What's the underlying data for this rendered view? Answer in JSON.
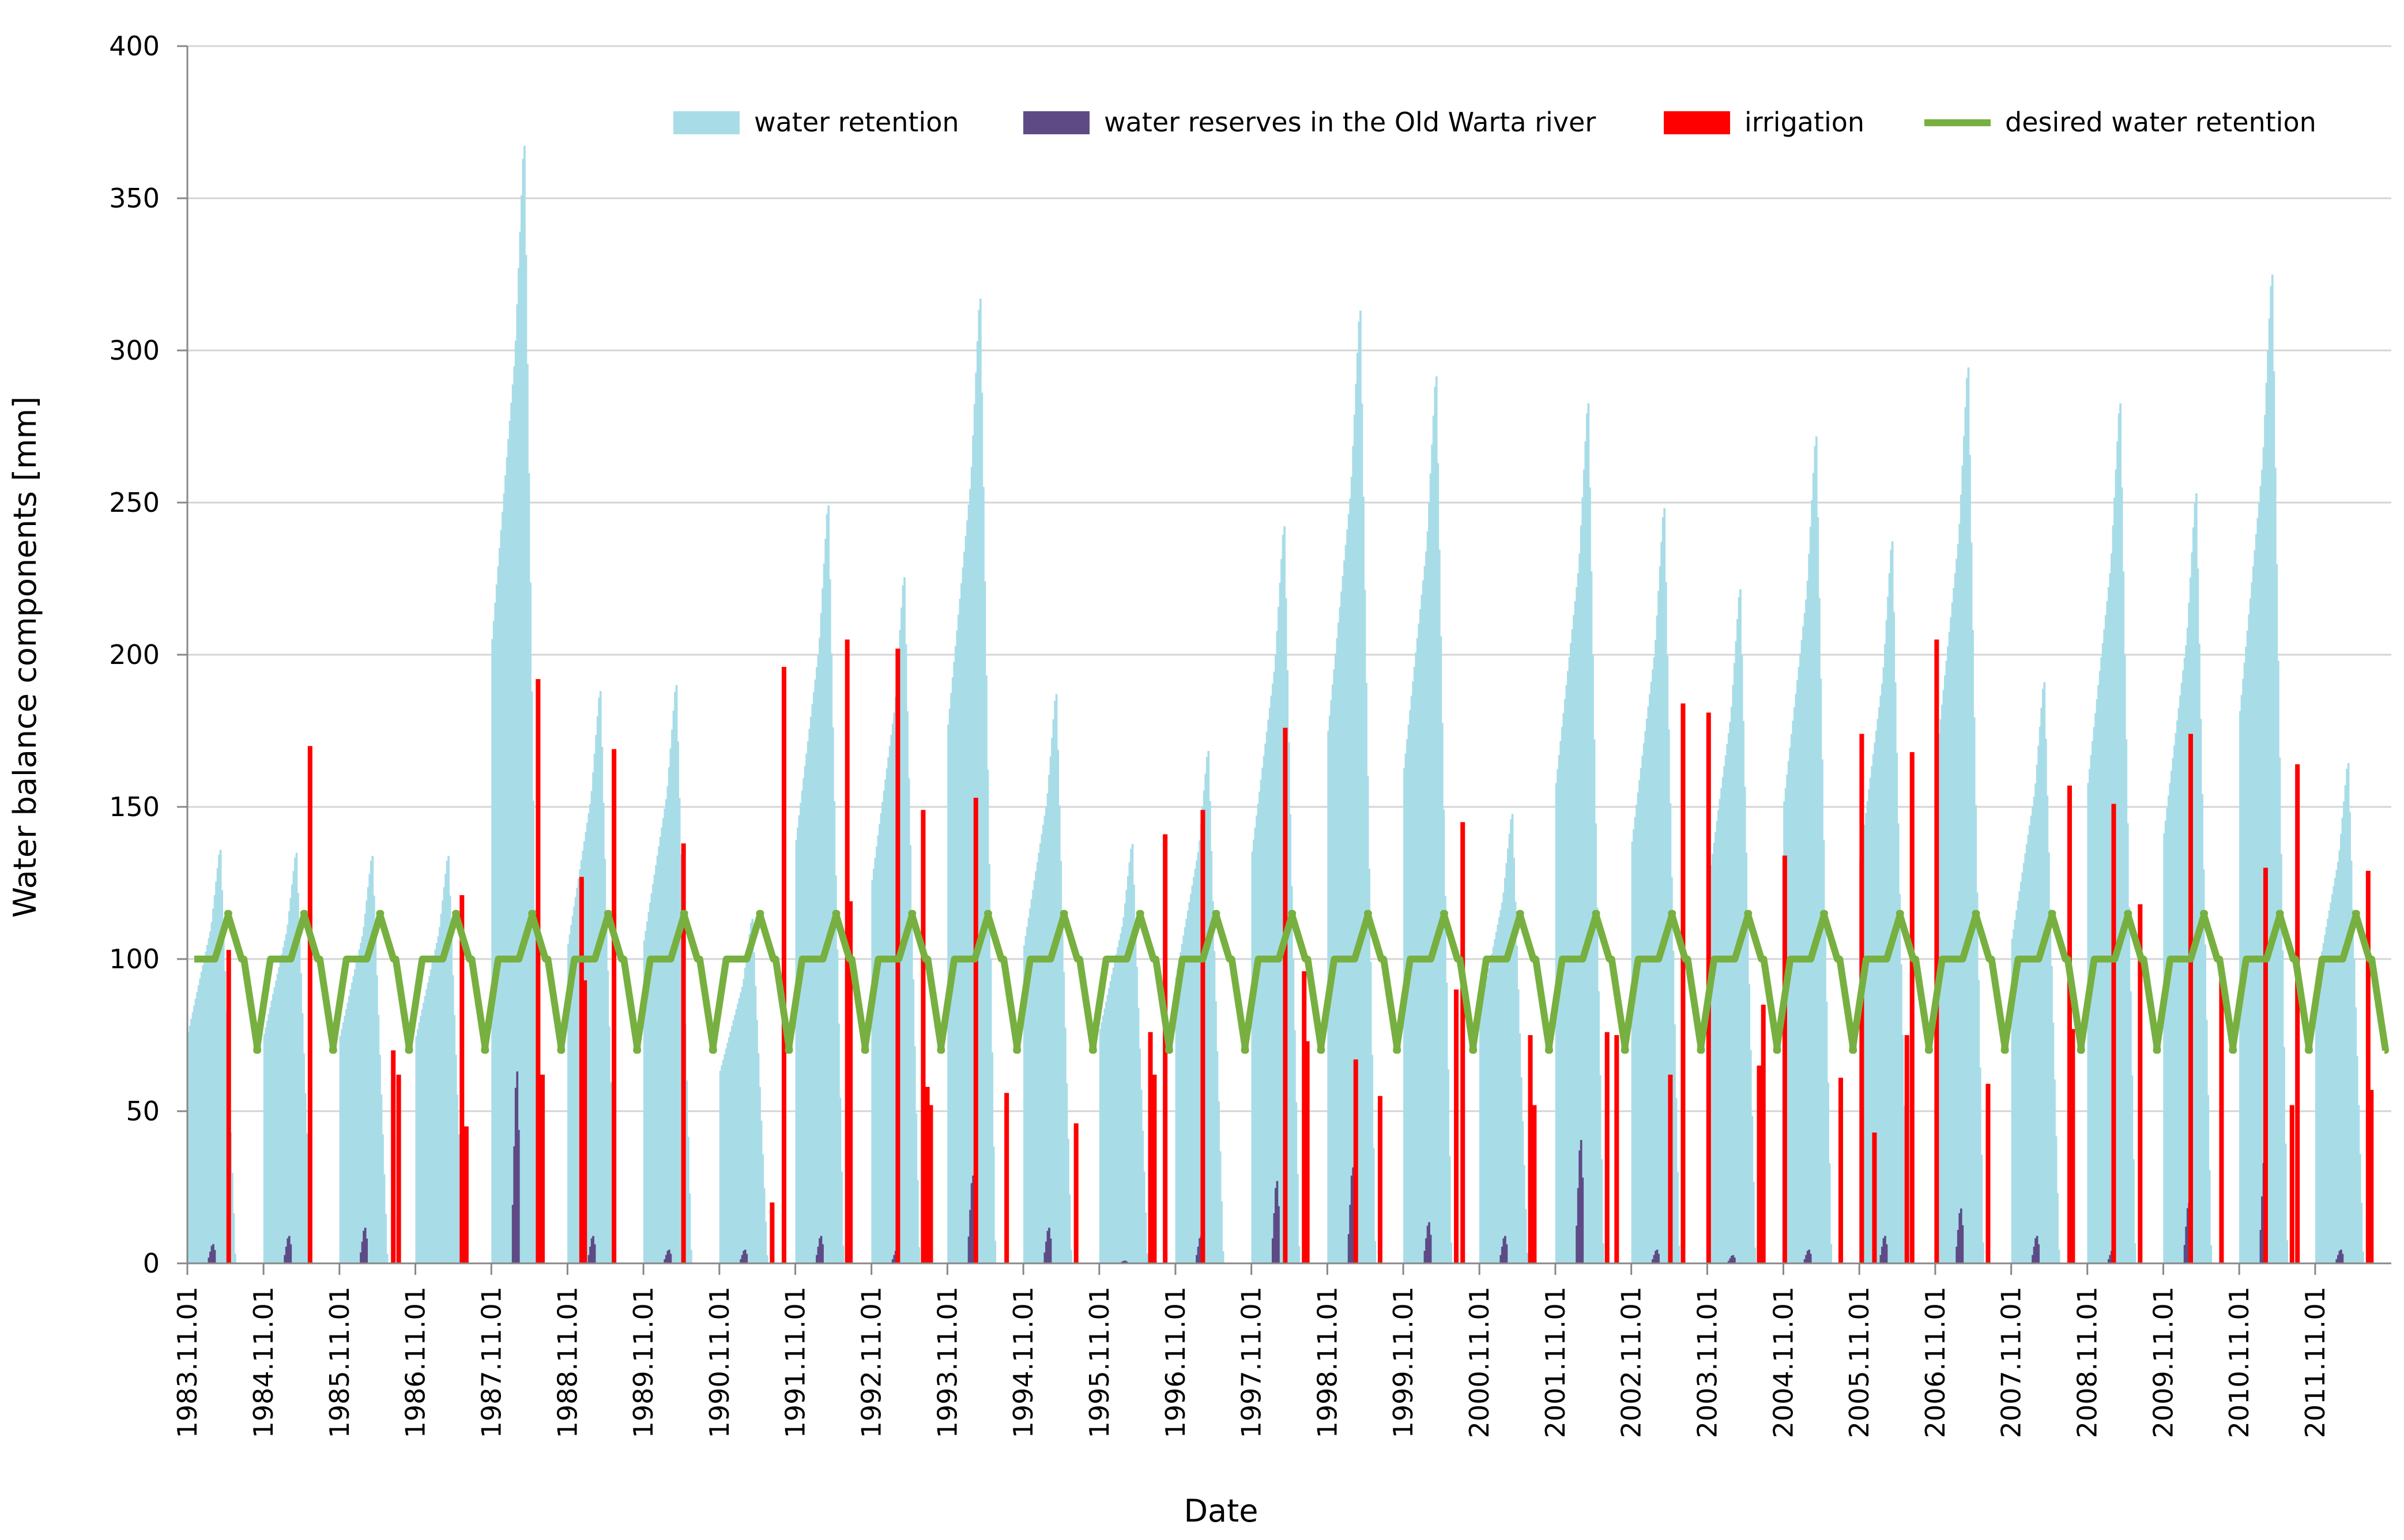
{
  "chart_data": {
    "type": "bar",
    "title": "",
    "xlabel": "Date",
    "ylabel": "Water balance components    [mm]",
    "ylim": [
      0,
      400
    ],
    "yticks": [
      "0",
      "50",
      "100",
      "150",
      "200",
      "250",
      "300",
      "350",
      "400"
    ],
    "x_start": "1983.11.01",
    "x_end": "2012.11.01",
    "xticks": [
      "1983.11.01",
      "1984.11.01",
      "1985.11.01",
      "1986.11.01",
      "1987.11.01",
      "1988.11.01",
      "1989.11.01",
      "1990.11.01",
      "1991.11.01",
      "1992.11.01",
      "1993.11.01",
      "1994.11.01",
      "1995.11.01",
      "1996.11.01",
      "1997.11.01",
      "1998.11.01",
      "1999.11.01",
      "2000.11.01",
      "2001.11.01",
      "2002.11.01",
      "2003.11.01",
      "2004.11.01",
      "2005.11.01",
      "2006.11.01",
      "2007.11.01",
      "2008.11.01",
      "2009.11.01",
      "2010.11.01",
      "2011.11.01"
    ],
    "grid": true,
    "legend_position": "top-right",
    "series": [
      {
        "name": "water retention",
        "type": "bar",
        "color": "#a8dde8",
        "peaks": [
          138,
          137,
          136,
          136,
          373,
          191,
          193,
          115,
          253,
          229,
          322,
          190,
          140,
          171,
          246,
          318,
          296,
          150,
          287,
          252,
          225,
          276,
          241,
          299,
          194,
          287,
          257,
          330,
          167
        ]
      },
      {
        "name": "water reserves in the Old Warta river",
        "type": "bar",
        "color": "#5e4b86",
        "peaks": [
          7,
          10,
          13,
          0,
          70,
          10,
          5,
          5,
          10,
          5,
          32,
          13,
          1,
          10,
          30,
          35,
          15,
          10,
          45,
          5,
          3,
          5,
          10,
          20,
          10,
          5,
          22,
          40,
          5
        ]
      },
      {
        "name": "irrigation",
        "type": "bar",
        "color": "#ff0000",
        "events": [
          {
            "date": "1984.05.15",
            "value": 103
          },
          {
            "date": "1985.06.10",
            "value": 170
          },
          {
            "date": "1986.07.15",
            "value": 70
          },
          {
            "date": "1986.08.10",
            "value": 62
          },
          {
            "date": "1987.06.10",
            "value": 121
          },
          {
            "date": "1987.07.01",
            "value": 45
          },
          {
            "date": "1988.06.10",
            "value": 192
          },
          {
            "date": "1988.07.01",
            "value": 62
          },
          {
            "date": "1989.01.05",
            "value": 127
          },
          {
            "date": "1989.01.20",
            "value": 93
          },
          {
            "date": "1989.06.10",
            "value": 169
          },
          {
            "date": "1990.05.10",
            "value": 138
          },
          {
            "date": "1991.07.10",
            "value": 20
          },
          {
            "date": "1991.09.05",
            "value": 196
          },
          {
            "date": "1992.07.05",
            "value": 205
          },
          {
            "date": "1992.07.20",
            "value": 119
          },
          {
            "date": "1993.03.05",
            "value": 202
          },
          {
            "date": "1993.07.05",
            "value": 149
          },
          {
            "date": "1993.07.25",
            "value": 58
          },
          {
            "date": "1993.08.10",
            "value": 52
          },
          {
            "date": "1994.03.15",
            "value": 153
          },
          {
            "date": "1994.08.10",
            "value": 56
          },
          {
            "date": "1995.07.10",
            "value": 46
          },
          {
            "date": "1996.07.01",
            "value": 76
          },
          {
            "date": "1996.07.20",
            "value": 62
          },
          {
            "date": "1996.09.10",
            "value": 141
          },
          {
            "date": "1997.03.10",
            "value": 149
          },
          {
            "date": "1998.04.10",
            "value": 176
          },
          {
            "date": "1998.07.10",
            "value": 96
          },
          {
            "date": "1998.07.25",
            "value": 73
          },
          {
            "date": "1999.03.15",
            "value": 67
          },
          {
            "date": "1999.07.10",
            "value": 55
          },
          {
            "date": "2000.07.10",
            "value": 90
          },
          {
            "date": "2000.08.10",
            "value": 145
          },
          {
            "date": "2001.07.01",
            "value": 75
          },
          {
            "date": "2001.07.20",
            "value": 52
          },
          {
            "date": "2002.07.05",
            "value": 76
          },
          {
            "date": "2002.08.20",
            "value": 75
          },
          {
            "date": "2003.05.05",
            "value": 62
          },
          {
            "date": "2003.07.05",
            "value": 184
          },
          {
            "date": "2003.11.05",
            "value": 181
          },
          {
            "date": "2004.07.05",
            "value": 65
          },
          {
            "date": "2004.07.25",
            "value": 85
          },
          {
            "date": "2004.11.05",
            "value": 134
          },
          {
            "date": "2005.08.01",
            "value": 61
          },
          {
            "date": "2005.11.10",
            "value": 174
          },
          {
            "date": "2006.01.10",
            "value": 43
          },
          {
            "date": "2006.06.15",
            "value": 75
          },
          {
            "date": "2006.07.10",
            "value": 168
          },
          {
            "date": "2006.11.05",
            "value": 205
          },
          {
            "date": "2007.07.10",
            "value": 59
          },
          {
            "date": "2008.08.05",
            "value": 157
          },
          {
            "date": "2008.08.20",
            "value": 77
          },
          {
            "date": "2009.03.05",
            "value": 151
          },
          {
            "date": "2009.07.10",
            "value": 118
          },
          {
            "date": "2010.03.10",
            "value": 174
          },
          {
            "date": "2010.08.05",
            "value": 96
          },
          {
            "date": "2011.03.05",
            "value": 130
          },
          {
            "date": "2011.07.10",
            "value": 52
          },
          {
            "date": "2011.08.05",
            "value": 164
          },
          {
            "date": "2012.07.10",
            "value": 129
          },
          {
            "date": "2012.07.25",
            "value": 57
          }
        ]
      },
      {
        "name": "desired water retention",
        "type": "line",
        "color": "#77b040",
        "annual_pattern": [
          {
            "from": "11.01",
            "to": "04.15",
            "value": 100
          },
          {
            "from": "04.15",
            "to": "06.15",
            "value": 115
          },
          {
            "from": "06.15",
            "to": "09.01",
            "value": 100
          },
          {
            "from": "09.01",
            "to": "11.01",
            "value": 70
          }
        ]
      }
    ]
  }
}
